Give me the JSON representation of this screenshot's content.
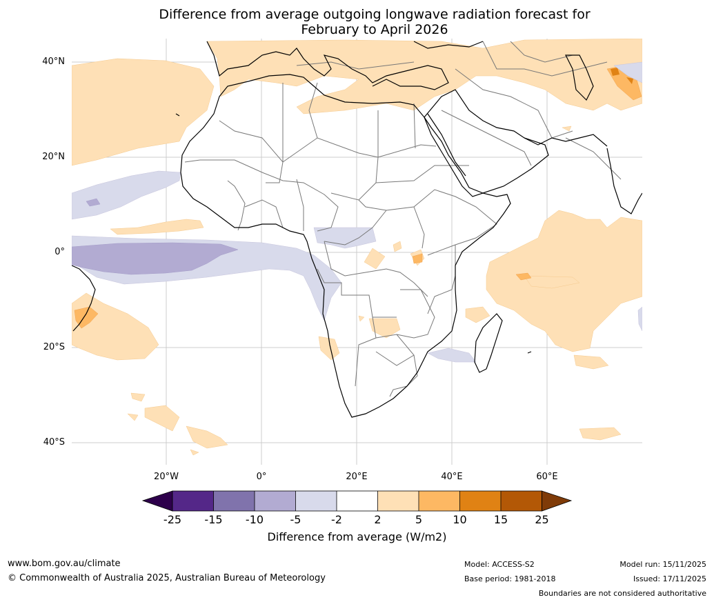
{
  "title_line1": "Difference from average outgoing longwave radiation forecast for",
  "title_line2": "February to April 2026",
  "lat_labels": [
    "40°N",
    "20°N",
    "0°",
    "20°S",
    "40°S"
  ],
  "lon_labels": [
    "20°W",
    "0°",
    "20°E",
    "40°E",
    "60°E"
  ],
  "legend": {
    "ticks": [
      "-25",
      "-15",
      "-10",
      "-5",
      "-2",
      "2",
      "5",
      "10",
      "15",
      "25"
    ],
    "title": "Difference from average (W/m2)",
    "colors": {
      "under": "#2d004b",
      "c1": "#542788",
      "c2": "#8073ac",
      "c3": "#b2abd2",
      "c4": "#d8daeb",
      "c5": "#ffffff",
      "c6": "#fee0b6",
      "c7": "#fdb863",
      "c8": "#e08214",
      "c9": "#b35806",
      "over": "#7f3b08"
    }
  },
  "footer": {
    "url": "www.bom.gov.au/climate",
    "copyright": "© Commonwealth of Australia 2025, Australian Bureau of Meteorology",
    "model": "Model: ACCESS-S2",
    "base_period": "Base period: 1981-2018",
    "model_run": "Model run: 15/11/2025",
    "issued": "Issued: 17/11/2025",
    "disclaimer": "Boundaries are not considered authoritative"
  }
}
